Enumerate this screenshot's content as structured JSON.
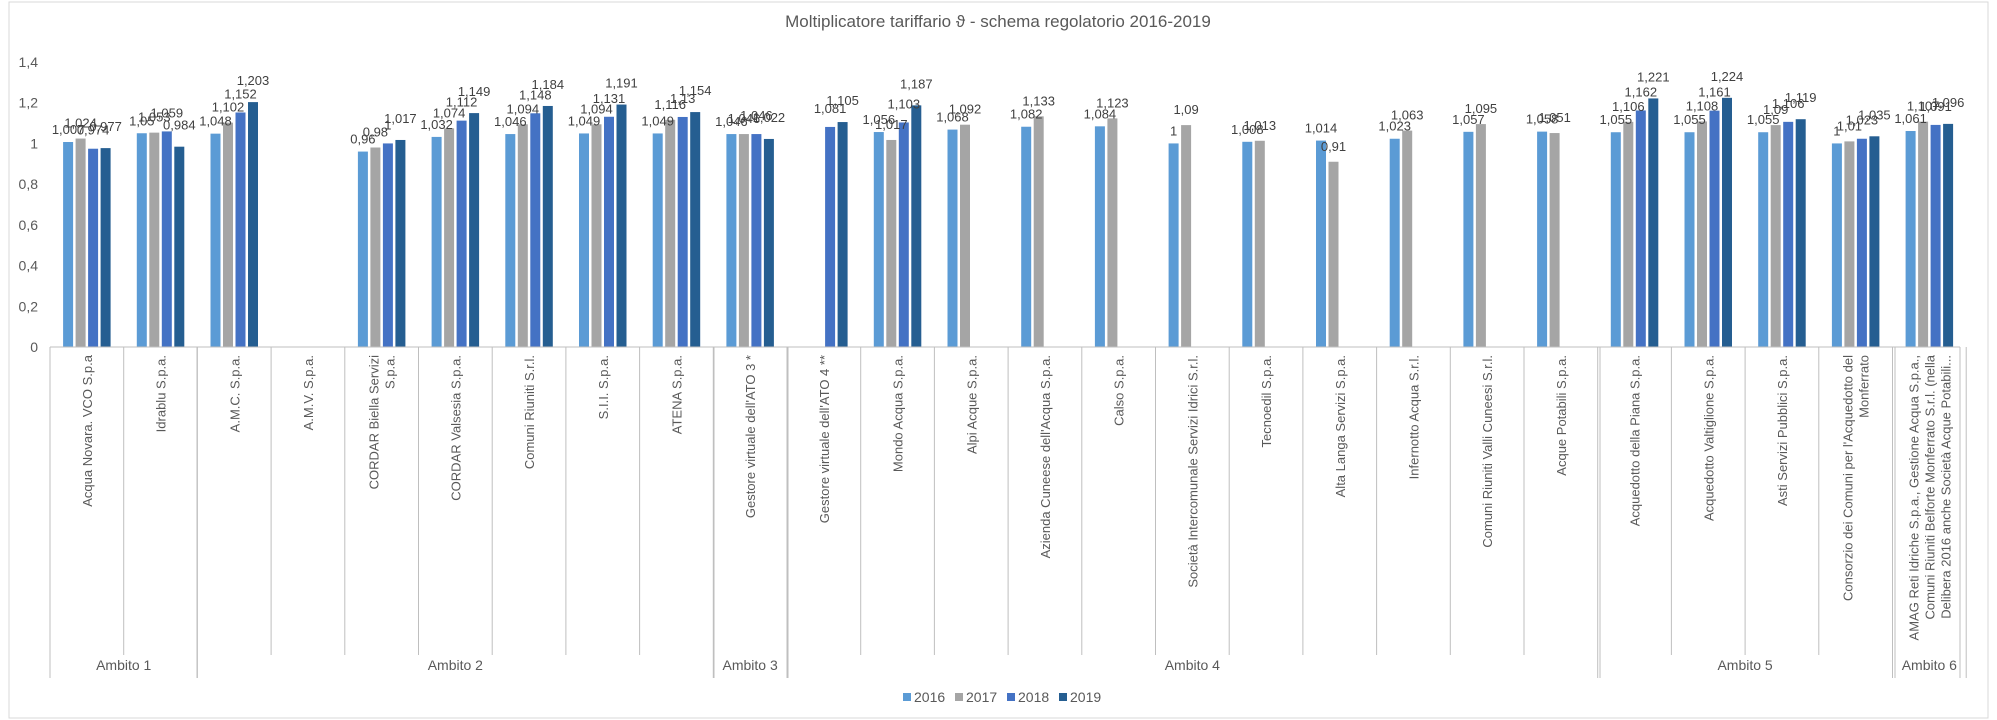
{
  "chart_data": {
    "type": "bar",
    "title": "Moltiplicatore tariffario ϑ - schema regolatorio 2016-2019",
    "ylim": [
      0,
      1.4
    ],
    "yticks": [
      "0",
      "0,2",
      "0,4",
      "0,6",
      "0,8",
      "1",
      "1,2",
      "1,4"
    ],
    "grid": false,
    "legend_position": "bottom",
    "colors": [
      "#5B9BD5",
      "#A5A5A5",
      "#4472C4",
      "#255E91"
    ],
    "series": [
      {
        "name": "2016",
        "values": [
          1.007,
          1.05,
          1.048,
          null,
          0.96,
          1.032,
          1.046,
          1.049,
          1.049,
          1.046,
          null,
          1.056,
          1.068,
          1.082,
          1.084,
          1,
          1.008,
          1.014,
          1.023,
          1.057,
          1.058,
          1.055,
          1.055,
          1.055,
          1,
          1.061
        ]
      },
      {
        "name": "2017",
        "values": [
          1.024,
          1.053,
          1.102,
          null,
          0.98,
          1.074,
          1.094,
          1.094,
          1.116,
          1.046,
          null,
          1.017,
          1.092,
          1.133,
          1.123,
          1.09,
          1.013,
          0.91,
          1.063,
          1.095,
          1.051,
          1.106,
          1.108,
          1.09,
          1.01,
          1.107
        ]
      },
      {
        "name": "2018",
        "values": [
          0.974,
          1.059,
          1.152,
          null,
          1,
          1.112,
          1.148,
          1.131,
          1.13,
          1.046,
          1.081,
          1.103,
          null,
          null,
          null,
          null,
          null,
          null,
          null,
          null,
          null,
          1.162,
          1.161,
          1.106,
          1.023,
          1.091
        ]
      },
      {
        "name": "2019",
        "values": [
          0.977,
          0.984,
          1.203,
          null,
          1.017,
          1.149,
          1.184,
          1.191,
          1.154,
          1.022,
          1.105,
          1.187,
          null,
          null,
          null,
          null,
          null,
          null,
          null,
          null,
          null,
          1.221,
          1.224,
          1.119,
          1.035,
          1.096
        ]
      }
    ],
    "labels": [
      [
        "1,007",
        "1,024",
        "0,974",
        "0,977"
      ],
      [
        "1,05",
        "1,053",
        "1,059",
        "0,984"
      ],
      [
        "1,048",
        "1,102",
        "1,152",
        "1,203"
      ],
      [
        null,
        null,
        null,
        null
      ],
      [
        "0,96",
        "0,98",
        "1",
        "1,017"
      ],
      [
        "1,032",
        "1,074",
        "1,112",
        "1,149"
      ],
      [
        "1,046",
        "1,094",
        "1,148",
        "1,184"
      ],
      [
        "1,049",
        "1,094",
        "1,131",
        "1,191"
      ],
      [
        "1,049",
        "1,116",
        "1,13",
        "1,154"
      ],
      [
        "1,046",
        "1,046",
        "1,046",
        "1,022"
      ],
      [
        null,
        null,
        "1,081",
        "1,105"
      ],
      [
        "1,056",
        "1,017",
        "1,103",
        "1,187"
      ],
      [
        "1,068",
        "1,092",
        null,
        null
      ],
      [
        "1,082",
        "1,133",
        null,
        null
      ],
      [
        "1,084",
        "1,123",
        null,
        null
      ],
      [
        "1",
        "1,09",
        null,
        null
      ],
      [
        "1,008",
        "1,013",
        null,
        null
      ],
      [
        "1,014",
        "0,91",
        null,
        null
      ],
      [
        "1,023",
        "1,063",
        null,
        null
      ],
      [
        "1,057",
        "1,095",
        null,
        null
      ],
      [
        "1,058",
        "1,051",
        null,
        null
      ],
      [
        "1,055",
        "1,106",
        "1,162",
        "1,221"
      ],
      [
        "1,055",
        "1,108",
        "1,161",
        "1,224"
      ],
      [
        "1,055",
        "1,09",
        "1,106",
        "1,119"
      ],
      [
        "1",
        "1,01",
        "1,023",
        "1,035"
      ],
      [
        "1,061",
        "1,107",
        "1,091",
        "1,096"
      ]
    ],
    "categories": [
      [
        "Acqua Novara. VCO S.p.a"
      ],
      [
        "Idrablu S.p.a."
      ],
      [
        "A.M.C. S.p.a."
      ],
      [
        "A.M.V. S.p.a."
      ],
      [
        "CORDAR Biella Servizi",
        "S.p.a."
      ],
      [
        "CORDAR Valsesia S.p.a."
      ],
      [
        "Comuni Riuniti S.r.l."
      ],
      [
        "S.I.I. S.p.a."
      ],
      [
        "ATENA S.p.a."
      ],
      [
        "Gestore virtuale dell'ATO 3 *"
      ],
      [
        "Gestore virtuale dell'ATO 4 **"
      ],
      [
        "Mondo Acqua S.p.a."
      ],
      [
        "Alpi Acque S.p.a."
      ],
      [
        "Azienda Cuneese dell'Acqua S.p.a."
      ],
      [
        "Calso S.p.a."
      ],
      [
        "Società Intercomunale Servizi Idrici S.r.l."
      ],
      [
        "Tecnoedil S.p.a."
      ],
      [
        "Alta Langa Servizi S.p.a."
      ],
      [
        "Infernotto Acqua S.r.l."
      ],
      [
        "Comuni Riuniti Valli Cuneesi S.r.l."
      ],
      [
        "Acque Potabili S.p.a."
      ],
      [
        "Acquedotto della Piana S.p.a."
      ],
      [
        "Acquedotto Valtiglione S.p.a."
      ],
      [
        "Asti Servizi Pubblici S.p.a."
      ],
      [
        "Consorzio dei Comuni per l'Acquedotto del",
        "Monferrato"
      ],
      [
        "AMAG Reti Idriche S.p.a., Gestione Acqua S.p.a.,",
        "Comuni Riuniti Belforte Monferrato S.r.l. (nella",
        "Delibera 2016 anche Società Acque Potabili..."
      ]
    ],
    "groups": [
      {
        "name": "Ambito 1",
        "start": 0,
        "end": 1
      },
      {
        "name": "Ambito 2",
        "start": 2,
        "end": 8
      },
      {
        "name": "Ambito 3",
        "start": 9,
        "end": 9
      },
      {
        "name": "Ambito 4",
        "start": 10,
        "end": 20
      },
      {
        "name": "Ambito 5",
        "start": 21,
        "end": 24
      },
      {
        "name": "Ambito 6",
        "start": 25,
        "end": 25
      }
    ]
  }
}
